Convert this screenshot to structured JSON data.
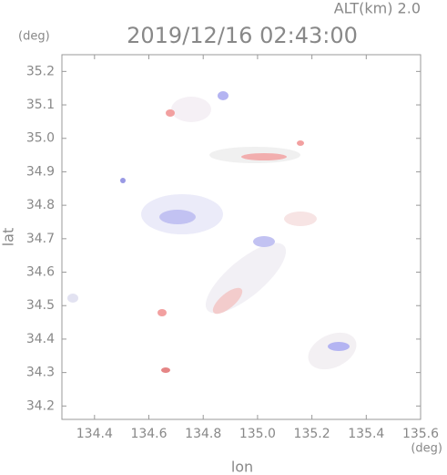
{
  "chart_data": {
    "type": "map",
    "title": "2019/12/16 02:43:00",
    "subtitle": "ALT(km)  2.0",
    "y_unit": "(deg)",
    "x_unit": "(deg)",
    "x_label": "lon",
    "y_label": "lat",
    "xlim": [
      134.28,
      135.6
    ],
    "ylim": [
      34.16,
      35.25
    ],
    "xticks": [
      134.4,
      134.6,
      134.8,
      {
        "value": 135,
        "label": "135.0"
      },
      135.2,
      135.4,
      135.6
    ],
    "yticks": [
      34.2,
      34.3,
      34.4,
      34.5,
      34.6,
      34.7,
      34.8,
      34.9,
      {
        "value": 35,
        "label": "35.0"
      },
      35.1,
      35.2
    ]
  }
}
